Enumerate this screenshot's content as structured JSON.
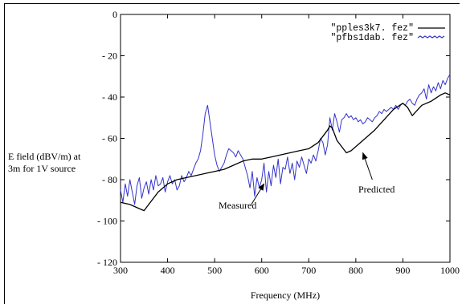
{
  "chart_data": {
    "type": "line",
    "xlabel": "Frequency (MHz)",
    "ylabel_lines": [
      "E field (dBV/m) at",
      "3m for 1V source"
    ],
    "xlim": [
      300,
      1000
    ],
    "ylim": [
      -120,
      0
    ],
    "x_ticks": [
      300,
      400,
      500,
      600,
      700,
      800,
      900,
      1000
    ],
    "y_ticks": [
      0,
      -20,
      -40,
      -60,
      -80,
      -100,
      -120
    ],
    "x_tick_labels": [
      "300",
      "400",
      "500",
      "600",
      "700",
      "800",
      "900",
      "1000"
    ],
    "y_tick_labels": [
      "0",
      "- 20",
      "- 40",
      "- 60",
      "- 80",
      "- 100",
      "- 120"
    ],
    "legend_position": "top-right",
    "series": [
      {
        "name": "\"pples3k7. fez\"",
        "color": "#000000",
        "x": [
          300,
          320,
          340,
          350,
          360,
          380,
          400,
          420,
          440,
          460,
          480,
          500,
          520,
          540,
          560,
          580,
          600,
          620,
          640,
          660,
          680,
          700,
          720,
          740,
          745,
          750,
          760,
          780,
          790,
          800,
          820,
          840,
          860,
          880,
          900,
          910,
          920,
          940,
          960,
          980,
          990,
          1000
        ],
        "y": [
          -91,
          -92,
          -94,
          -95,
          -92,
          -86,
          -82,
          -80,
          -79,
          -78,
          -77,
          -76,
          -75,
          -73,
          -71,
          -70,
          -70,
          -69,
          -68,
          -67,
          -66,
          -65,
          -62,
          -56,
          -54,
          -55,
          -61,
          -67,
          -66,
          -64,
          -60,
          -56,
          -51,
          -46,
          -43,
          -45,
          -49,
          -44,
          -42,
          -39,
          -38,
          -39
        ]
      },
      {
        "name": "\"pfbs1dab. fez\"",
        "color": "#3333cc",
        "x": [
          300,
          305,
          310,
          315,
          320,
          325,
          330,
          335,
          340,
          345,
          350,
          355,
          360,
          365,
          370,
          375,
          380,
          385,
          390,
          395,
          400,
          405,
          410,
          415,
          420,
          425,
          430,
          435,
          440,
          445,
          450,
          455,
          460,
          465,
          470,
          475,
          480,
          485,
          490,
          495,
          500,
          505,
          510,
          515,
          520,
          525,
          530,
          535,
          540,
          545,
          550,
          555,
          560,
          565,
          570,
          575,
          580,
          585,
          590,
          595,
          600,
          605,
          610,
          615,
          620,
          625,
          630,
          635,
          640,
          645,
          650,
          655,
          660,
          665,
          670,
          675,
          680,
          685,
          690,
          695,
          700,
          705,
          710,
          715,
          720,
          725,
          730,
          735,
          740,
          745,
          750,
          755,
          760,
          765,
          770,
          775,
          780,
          785,
          790,
          795,
          800,
          805,
          810,
          815,
          820,
          825,
          830,
          835,
          840,
          845,
          850,
          855,
          860,
          865,
          870,
          875,
          880,
          885,
          890,
          895,
          900,
          905,
          910,
          915,
          920,
          925,
          930,
          935,
          940,
          945,
          950,
          955,
          960,
          965,
          970,
          975,
          980,
          985,
          990,
          995,
          1000
        ],
        "y": [
          -85,
          -91,
          -82,
          -88,
          -80,
          -86,
          -92,
          -83,
          -79,
          -89,
          -84,
          -81,
          -87,
          -80,
          -85,
          -78,
          -83,
          -82,
          -79,
          -86,
          -81,
          -78,
          -82,
          -80,
          -85,
          -83,
          -78,
          -81,
          -79,
          -76,
          -78,
          -75,
          -72,
          -70,
          -66,
          -58,
          -48,
          -44,
          -52,
          -60,
          -68,
          -73,
          -76,
          -74,
          -72,
          -68,
          -65,
          -66,
          -67,
          -69,
          -66,
          -68,
          -70,
          -74,
          -78,
          -84,
          -76,
          -88,
          -79,
          -84,
          -80,
          -72,
          -86,
          -76,
          -83,
          -73,
          -79,
          -70,
          -82,
          -74,
          -75,
          -69,
          -77,
          -72,
          -80,
          -71,
          -74,
          -69,
          -73,
          -77,
          -70,
          -72,
          -68,
          -71,
          -66,
          -60,
          -62,
          -68,
          -63,
          -50,
          -56,
          -48,
          -52,
          -57,
          -51,
          -50,
          -48,
          -50,
          -49,
          -51,
          -50,
          -52,
          -51,
          -53,
          -52,
          -50,
          -51,
          -52,
          -50,
          -49,
          -47,
          -48,
          -46,
          -47,
          -46,
          -45,
          -46,
          -44,
          -46,
          -44,
          -43,
          -44,
          -42,
          -41,
          -43,
          -44,
          -41,
          -39,
          -38,
          -36,
          -41,
          -34,
          -38,
          -35,
          -37,
          -33,
          -36,
          -32,
          -34,
          -31,
          -29
        ]
      }
    ],
    "annotations": [
      {
        "text": "Measured",
        "arrow_from": [
          578,
          -92
        ],
        "arrow_to": [
          605,
          -82
        ]
      },
      {
        "text": "Predicted",
        "arrow_from": [
          835,
          -80
        ],
        "arrow_to": [
          815,
          -67
        ]
      }
    ]
  }
}
